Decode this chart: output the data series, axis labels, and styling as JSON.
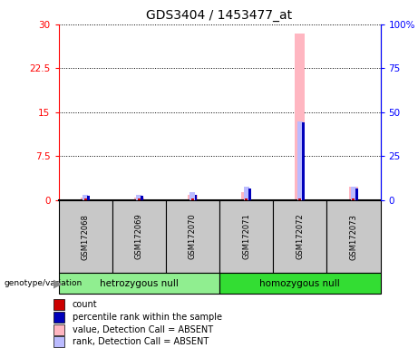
{
  "title": "GDS3404 / 1453477_at",
  "samples": [
    "GSM172068",
    "GSM172069",
    "GSM172070",
    "GSM172071",
    "GSM172072",
    "GSM172073"
  ],
  "groups": [
    {
      "label": "hetrozygous null",
      "indices": [
        0,
        1,
        2
      ],
      "color": "#66EE66"
    },
    {
      "label": "homozygous null",
      "indices": [
        3,
        4,
        5
      ],
      "color": "#33DD33"
    }
  ],
  "left_yticks": [
    0,
    7.5,
    15,
    22.5,
    30
  ],
  "left_ylabels": [
    "0",
    "7.5",
    "15",
    "22.5",
    "30"
  ],
  "right_ylabels": [
    "0",
    "25",
    "50",
    "75",
    "100%"
  ],
  "ylim": [
    0,
    30
  ],
  "value_absent": [
    0.4,
    0.4,
    0.9,
    1.3,
    28.5,
    2.3
  ],
  "rank_absent": [
    0.9,
    0.9,
    1.3,
    2.3,
    13.5,
    2.3
  ],
  "count": [
    0.25,
    0.25,
    0.25,
    0.25,
    0.25,
    0.25
  ],
  "percentile": [
    0.7,
    0.7,
    0.9,
    2.0,
    13.2,
    2.0
  ],
  "color_count": "#CC0000",
  "color_percentile": "#0000BB",
  "color_value_absent": "#FFB6C1",
  "color_rank_absent": "#BBBBFF",
  "legend_items": [
    {
      "label": "count",
      "color": "#CC0000"
    },
    {
      "label": "percentile rank within the sample",
      "color": "#0000BB"
    },
    {
      "label": "value, Detection Call = ABSENT",
      "color": "#FFB6C1"
    },
    {
      "label": "rank, Detection Call = ABSENT",
      "color": "#BBBBFF"
    }
  ],
  "bg_color": "#C8C8C8",
  "plot_bg": "#FFFFFF",
  "green_light": "#90EE90",
  "green_dark": "#33DD33"
}
